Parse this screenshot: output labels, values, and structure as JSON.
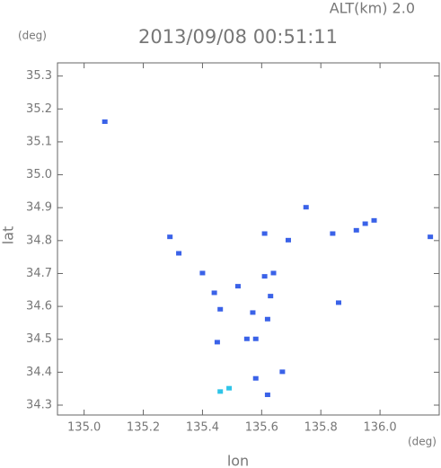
{
  "chart_data": {
    "type": "scatter",
    "title": "2013/09/08 00:51:11",
    "subtitle": "ALT(km) 2.0",
    "y_unit": "(deg)",
    "x_unit": "(deg)",
    "x_label": "lon",
    "y_label": "lat",
    "x": [
      135.07,
      135.29,
      135.32,
      135.4,
      135.44,
      135.46,
      135.45,
      135.52,
      135.61,
      135.61,
      135.57,
      135.58,
      135.55,
      135.62,
      135.64,
      135.63,
      135.75,
      135.86,
      135.92,
      135.95,
      135.98,
      136.17,
      135.58,
      135.67,
      135.62,
      135.49,
      135.46,
      135.84,
      135.69
    ],
    "values": [
      35.16,
      34.81,
      34.76,
      34.7,
      34.64,
      34.59,
      34.49,
      34.66,
      34.82,
      34.69,
      34.58,
      34.5,
      34.5,
      34.56,
      34.7,
      34.63,
      34.9,
      34.61,
      34.83,
      34.85,
      34.86,
      34.81,
      34.38,
      34.4,
      34.33,
      34.35,
      34.34,
      34.82,
      34.8
    ],
    "colors": [
      "#3a62e8",
      "#3a62e8",
      "#3a62e8",
      "#3a62e8",
      "#3a62e8",
      "#3a62e8",
      "#3a62e8",
      "#3a62e8",
      "#3a62e8",
      "#3a62e8",
      "#3a62e8",
      "#3a62e8",
      "#3a62e8",
      "#3a62e8",
      "#3a62e8",
      "#3a62e8",
      "#3a62e8",
      "#3a62e8",
      "#3a62e8",
      "#3a62e8",
      "#3a62e8",
      "#3a62e8",
      "#3a62e8",
      "#3a62e8",
      "#3a62e8",
      "#2fc4e8",
      "#2fc4e8",
      "#3a62e8",
      "#3a62e8"
    ],
    "xlim": [
      134.91,
      136.2
    ],
    "ylim": [
      34.27,
      35.34
    ],
    "xticks": [
      {
        "value": 135.0,
        "label": "135.0"
      },
      135.2,
      135.4,
      135.6,
      135.8,
      {
        "value": 136.0,
        "label": "136.0"
      }
    ],
    "yticks": [
      34.3,
      34.4,
      34.5,
      34.6,
      34.7,
      34.8,
      34.9,
      {
        "value": 35.0,
        "label": "35.0"
      },
      35.1,
      35.2,
      35.3
    ]
  }
}
